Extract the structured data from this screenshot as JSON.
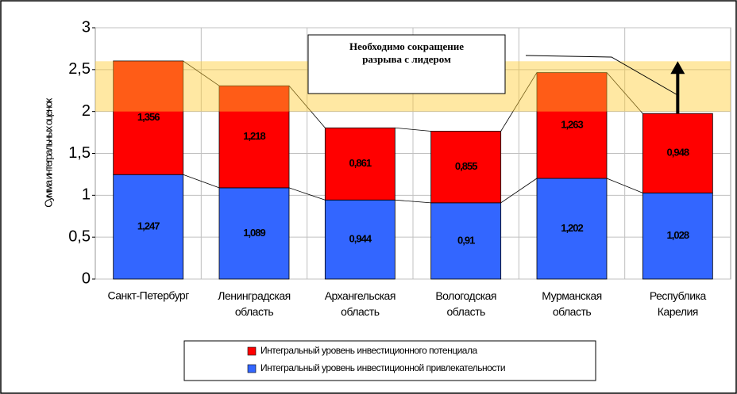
{
  "chart_data": {
    "type": "stacked_bar",
    "y_label": "Сумма интегральных оценок",
    "annotation": "Необходимо сокращение разрыва с лидером",
    "categories": [
      "Санкт-Петербург",
      "Ленинградская область",
      "Архангельская область",
      "Вологодская область",
      "Мурманская область",
      "Республика Карелия"
    ],
    "series": [
      {
        "name": "Интегральный уровень инвестиционной привлекательности",
        "color": "#3366ff",
        "values": [
          1.247,
          1.089,
          0.944,
          0.91,
          1.202,
          1.028
        ],
        "value_labels": [
          "1,247",
          "1,089",
          "0,944",
          "0,91",
          "1,202",
          "1,028"
        ]
      },
      {
        "name": "Интегральный уровень инвестиционного потенциала",
        "color": "#ff0000",
        "values": [
          1.356,
          1.218,
          0.861,
          0.855,
          1.263,
          0.948
        ],
        "value_labels": [
          "1,356",
          "1,218",
          "0,861",
          "0,855",
          "1,263",
          "0,948"
        ]
      }
    ],
    "highlight_band": [
      2,
      2.6
    ],
    "highlight_color": "#ffcc33",
    "ylim": [
      0,
      3
    ],
    "yticks": [
      0,
      {
        "value": 0.5,
        "label": "0,5"
      },
      1,
      {
        "value": 1.5,
        "label": "1,5"
      },
      2,
      {
        "value": 2.5,
        "label": "2,5"
      },
      3
    ],
    "grid": true
  }
}
